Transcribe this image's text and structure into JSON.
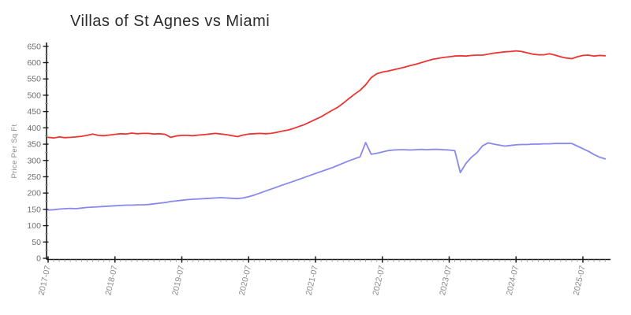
{
  "title": "Villas of St Agnes vs Miami",
  "chart_data": {
    "type": "line",
    "title": "Villas of St Agnes vs Miami",
    "xlabel": "",
    "ylabel": "Price Per Sq Ft",
    "ylim": [
      0,
      650
    ],
    "y_ticks": [
      0,
      50,
      100,
      150,
      200,
      250,
      300,
      350,
      400,
      450,
      500,
      550,
      600,
      650
    ],
    "y_minor_tick_interval": 25,
    "x_start": "2017-07",
    "x_end": "2025-11",
    "x_interval": "monthly",
    "x_tick_labels": [
      "2017-07",
      "2018-07",
      "2019-07",
      "2020-07",
      "2021-07",
      "2022-07",
      "2023-07",
      "2024-07",
      "2025-07"
    ],
    "x_tick_positions_months": [
      0,
      12,
      24,
      36,
      48,
      60,
      72,
      84,
      96
    ],
    "grid": false,
    "legend": "none",
    "style": "xkcd-like hand-drawn",
    "colors": {
      "axis": "#1a1a1a",
      "minor_tick": "#9b9b9b",
      "background": "#ffffff"
    },
    "series": [
      {
        "name": "red",
        "color": "#ee3333",
        "monthly_values": [
          371,
          369,
          372,
          370,
          371,
          372,
          374,
          377,
          381,
          377,
          376,
          378,
          380,
          382,
          381,
          384,
          382,
          383,
          383,
          381,
          382,
          380,
          371,
          375,
          377,
          377,
          376,
          378,
          379,
          381,
          383,
          381,
          379,
          376,
          373,
          378,
          381,
          382,
          383,
          382,
          383,
          386,
          390,
          393,
          398,
          404,
          410,
          418,
          426,
          434,
          444,
          454,
          463,
          476,
          490,
          503,
          515,
          532,
          554,
          566,
          571,
          574,
          578,
          582,
          586,
          591,
          595,
          600,
          605,
          610,
          613,
          616,
          618,
          620,
          621,
          620,
          622,
          623,
          623,
          626,
          629,
          631,
          633,
          634,
          636,
          634,
          630,
          626,
          624,
          624,
          627,
          623,
          618,
          614,
          612,
          618,
          622,
          623,
          620,
          622,
          621
        ]
      },
      {
        "name": "blue",
        "color": "#8888ee",
        "monthly_values": [
          148,
          149,
          151,
          152,
          153,
          152,
          154,
          156,
          157,
          158,
          159,
          160,
          161,
          162,
          163,
          163,
          164,
          164,
          165,
          167,
          169,
          171,
          174,
          176,
          178,
          180,
          181,
          182,
          183,
          184,
          185,
          186,
          185,
          184,
          183,
          185,
          189,
          194,
          200,
          206,
          212,
          218,
          224,
          230,
          236,
          242,
          248,
          254,
          260,
          266,
          272,
          278,
          285,
          292,
          299,
          305,
          311,
          355,
          319,
          322,
          326,
          330,
          332,
          333,
          333,
          332,
          333,
          334,
          333,
          334,
          334,
          333,
          332,
          330,
          263,
          291,
          310,
          324,
          345,
          354,
          350,
          347,
          344,
          346,
          348,
          349,
          349,
          350,
          350,
          351,
          351,
          352,
          352,
          352,
          352,
          344,
          336,
          328,
          318,
          310,
          305
        ]
      }
    ]
  }
}
